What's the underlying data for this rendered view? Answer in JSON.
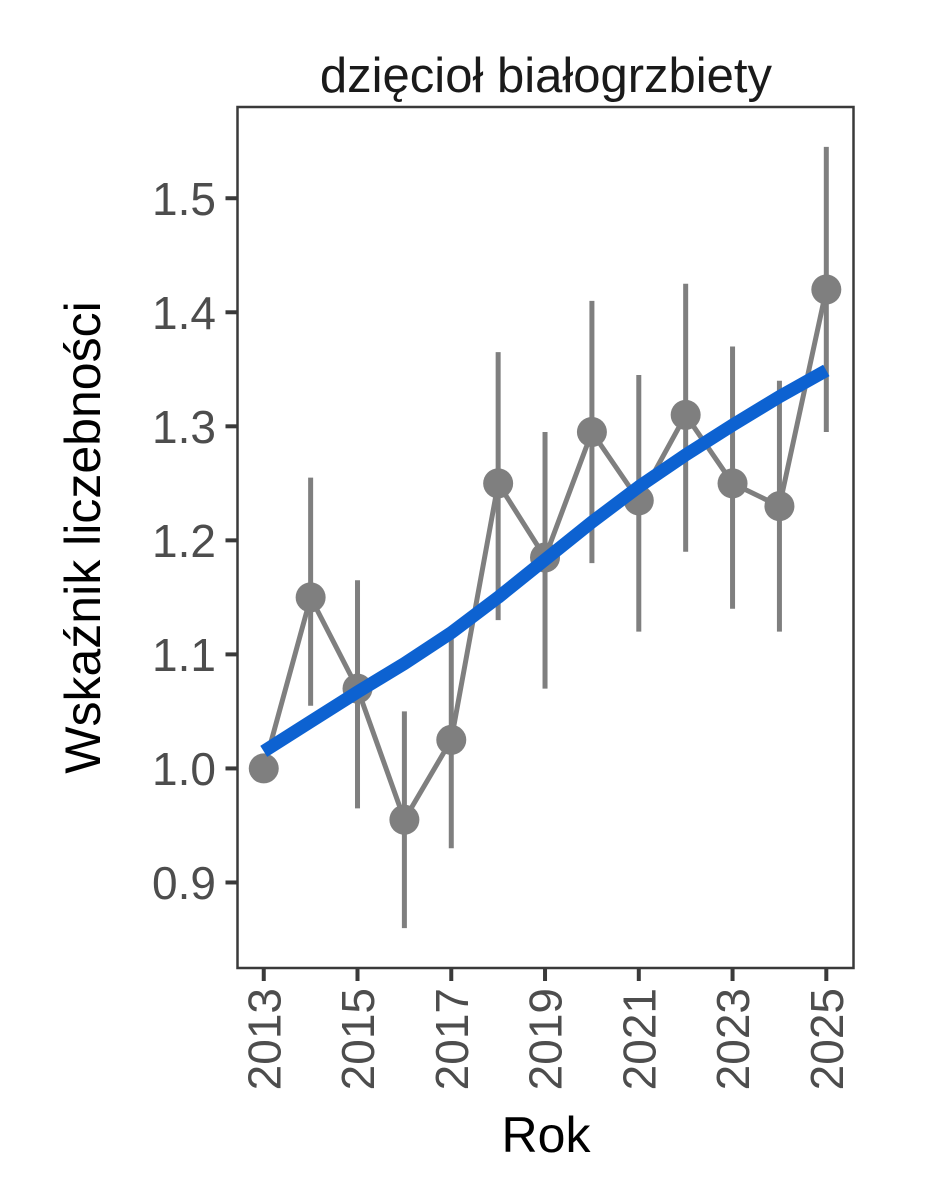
{
  "chart_data": {
    "type": "scatter",
    "title": "dzięcioł białogrzbiety",
    "xlabel": "Rok",
    "ylabel": "Wskaźnik liczebności",
    "xlim": [
      2012.44,
      2025.58
    ],
    "ylim": [
      0.825,
      1.58
    ],
    "grid": false,
    "legend": "none",
    "x_ticks": [
      2013,
      2015,
      2017,
      2019,
      2021,
      2023,
      2025
    ],
    "x_tick_labels": [
      "2013",
      "2015",
      "2017",
      "2019",
      "2021",
      "2023",
      "2025"
    ],
    "y_ticks": [
      0.9,
      1.0,
      1.1,
      1.2,
      1.3,
      1.4,
      1.5
    ],
    "y_tick_labels": [
      "0.9",
      "1.0",
      "1.1",
      "1.2",
      "1.3",
      "1.4",
      "1.5"
    ],
    "series": [
      {
        "name": "index-with-ci",
        "style": "points-with-errorbars-connected",
        "years": [
          2013,
          2014,
          2015,
          2016,
          2017,
          2018,
          2019,
          2020,
          2021,
          2022,
          2023,
          2024,
          2025
        ],
        "values": [
          1.0,
          1.15,
          1.07,
          0.955,
          1.025,
          1.25,
          1.185,
          1.295,
          1.235,
          1.31,
          1.25,
          1.23,
          1.42
        ],
        "ci_low": [
          null,
          1.055,
          0.965,
          0.86,
          0.93,
          1.13,
          1.07,
          1.18,
          1.12,
          1.19,
          1.14,
          1.12,
          1.295
        ],
        "ci_high": [
          null,
          1.255,
          1.165,
          1.05,
          1.115,
          1.365,
          1.295,
          1.41,
          1.345,
          1.425,
          1.37,
          1.34,
          1.545
        ]
      },
      {
        "name": "trend-smooth",
        "style": "thick-line",
        "years": [
          2013,
          2014,
          2015,
          2016,
          2017,
          2018,
          2019,
          2020,
          2021,
          2022,
          2023,
          2024,
          2025
        ],
        "values": [
          1.015,
          1.041,
          1.067,
          1.092,
          1.119,
          1.15,
          1.183,
          1.216,
          1.247,
          1.275,
          1.301,
          1.326,
          1.349
        ]
      }
    ],
    "colors": {
      "points": "#7f7f7f",
      "error_bars": "#7f7f7f",
      "connector_line": "#7f7f7f",
      "trend_line": "#0d62d1",
      "tick_text": "#4d4d4d",
      "title_text": "#1a1a1a",
      "axis_title_text": "#000000",
      "panel_border": "#3a3a3a",
      "background": "#ffffff"
    }
  }
}
